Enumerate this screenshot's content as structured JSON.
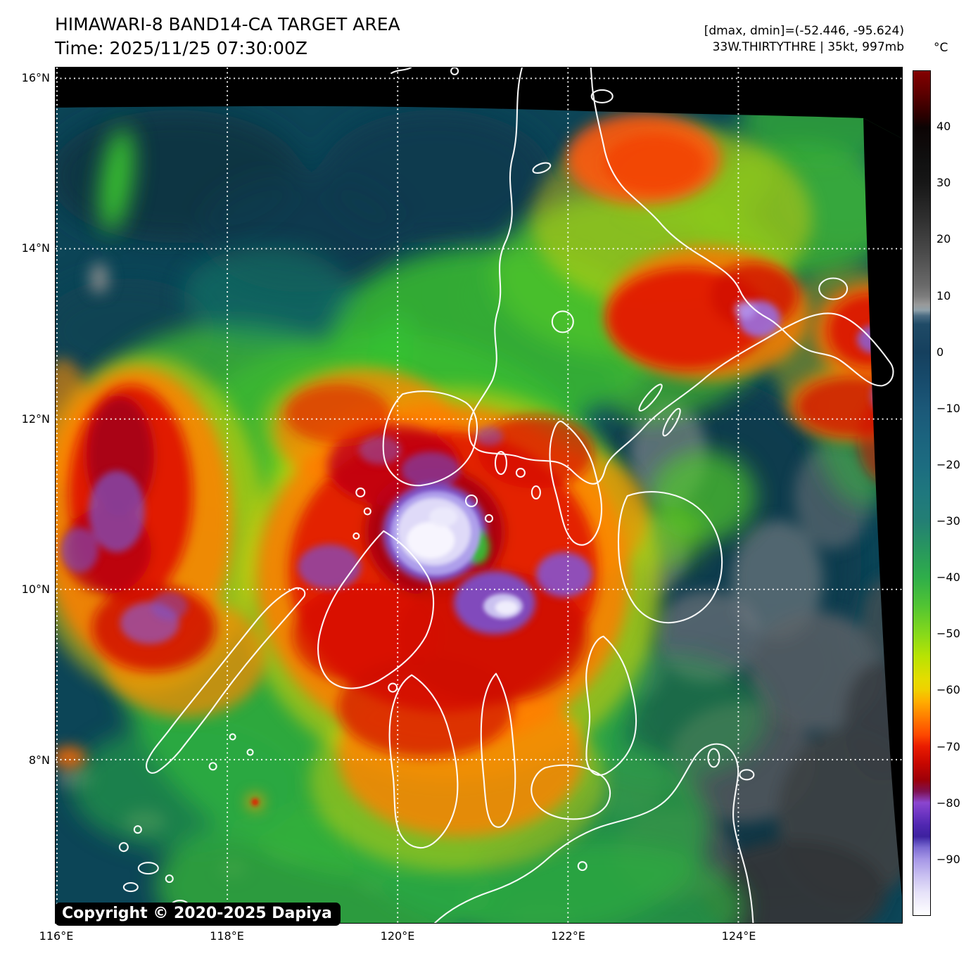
{
  "header": {
    "title": "HIMAWARI-8 BAND14-CA TARGET AREA",
    "time_line": "Time: 2025/11/25 07:30:00Z"
  },
  "annotations": {
    "dmax_dmin": "[dmax, dmin]=(-52.446, -95.624)",
    "storm_info": "33W.THIRTYTHRE | 35kt, 997mb"
  },
  "colorbar": {
    "unit": "°C",
    "range_max": 50,
    "range_min": -100,
    "ticks": [
      {
        "label": "40",
        "value": 40
      },
      {
        "label": "30",
        "value": 30
      },
      {
        "label": "20",
        "value": 20
      },
      {
        "label": "10",
        "value": 10
      },
      {
        "label": "0",
        "value": 0
      },
      {
        "label": "−10",
        "value": -10
      },
      {
        "label": "−20",
        "value": -20
      },
      {
        "label": "−30",
        "value": -30
      },
      {
        "label": "−40",
        "value": -40
      },
      {
        "label": "−50",
        "value": -50
      },
      {
        "label": "−60",
        "value": -60
      },
      {
        "label": "−70",
        "value": -70
      },
      {
        "label": "−80",
        "value": -80
      },
      {
        "label": "−90",
        "value": -90
      }
    ],
    "gradient": [
      {
        "value": 50,
        "color": "#840000"
      },
      {
        "value": 46,
        "color": "#5c0000"
      },
      {
        "value": 42,
        "color": "#2a0000"
      },
      {
        "value": 40,
        "color": "#0c0404"
      },
      {
        "value": 34,
        "color": "#101010"
      },
      {
        "value": 30,
        "color": "#171717"
      },
      {
        "value": 24,
        "color": "#2e2e2e"
      },
      {
        "value": 18,
        "color": "#494949"
      },
      {
        "value": 12,
        "color": "#696969"
      },
      {
        "value": 10,
        "color": "#7c7c7c"
      },
      {
        "value": 8.5,
        "color": "#999999"
      },
      {
        "value": 7.5,
        "color": "#8fa0aa"
      },
      {
        "value": 6.5,
        "color": "#4a6b82"
      },
      {
        "value": 5,
        "color": "#1f4a66"
      },
      {
        "value": 0,
        "color": "#15405e"
      },
      {
        "value": -5,
        "color": "#174b6c"
      },
      {
        "value": -10,
        "color": "#1b5878"
      },
      {
        "value": -15,
        "color": "#1b637e"
      },
      {
        "value": -20,
        "color": "#1c6c80"
      },
      {
        "value": -25,
        "color": "#1f787e"
      },
      {
        "value": -30,
        "color": "#237f74"
      },
      {
        "value": -35,
        "color": "#28975e"
      },
      {
        "value": -40,
        "color": "#2fae4a"
      },
      {
        "value": -45,
        "color": "#51c433"
      },
      {
        "value": -50,
        "color": "#86d91a"
      },
      {
        "value": -54,
        "color": "#b8e303"
      },
      {
        "value": -58,
        "color": "#e4dc00"
      },
      {
        "value": -60,
        "color": "#f0d000"
      },
      {
        "value": -62,
        "color": "#ffae00"
      },
      {
        "value": -65,
        "color": "#ff7a00"
      },
      {
        "value": -68,
        "color": "#fd4700"
      },
      {
        "value": -70,
        "color": "#ea1c00"
      },
      {
        "value": -73,
        "color": "#c70700"
      },
      {
        "value": -76,
        "color": "#9c0009"
      },
      {
        "value": -78,
        "color": "#7e1150"
      },
      {
        "value": -80,
        "color": "#8b46cf"
      },
      {
        "value": -82,
        "color": "#6d35c2"
      },
      {
        "value": -84,
        "color": "#4f27b0"
      },
      {
        "value": -86,
        "color": "#3d219f"
      },
      {
        "value": -87,
        "color": "#5a48bb"
      },
      {
        "value": -88,
        "color": "#7d6cd2"
      },
      {
        "value": -90,
        "color": "#a596e6"
      },
      {
        "value": -93,
        "color": "#c9c0f1"
      },
      {
        "value": -96,
        "color": "#e6e2f9"
      },
      {
        "value": -100,
        "color": "#ffffff"
      }
    ]
  },
  "axes": {
    "lat_ticks": [
      {
        "label": "16°N",
        "value": 16
      },
      {
        "label": "14°N",
        "value": 14
      },
      {
        "label": "12°N",
        "value": 12
      },
      {
        "label": "10°N",
        "value": 10
      },
      {
        "label": "8°N",
        "value": 8
      }
    ],
    "lon_ticks": [
      {
        "label": "116°E",
        "value": 116
      },
      {
        "label": "118°E",
        "value": 118
      },
      {
        "label": "120°E",
        "value": 120
      },
      {
        "label": "122°E",
        "value": 122
      },
      {
        "label": "124°E",
        "value": 124
      }
    ]
  },
  "map": {
    "copyright": "Copyright © 2020-2025 Dapiya",
    "ocean_base_color": "#0c4557",
    "no_data_color": "#000000",
    "coastline_color": "#ffffff",
    "grid_color": "#ffffff"
  }
}
